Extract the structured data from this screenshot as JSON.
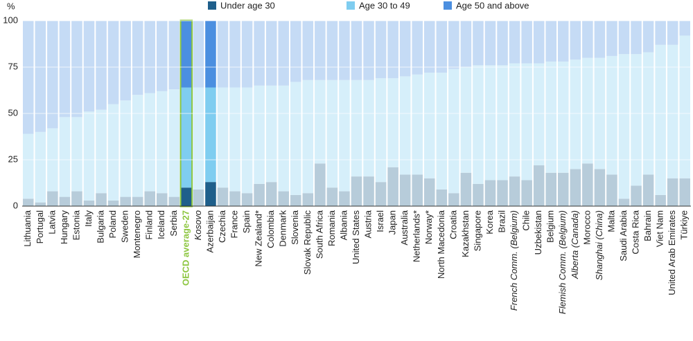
{
  "chart_data": {
    "type": "stacked-bar",
    "y_label": "%",
    "categories": [
      "Lithuania",
      "Portugal",
      "Latvia",
      "Hungary",
      "Estonia",
      "Italy",
      "Bulgaria",
      "Poland",
      "Sweden",
      "Montenegro",
      "Finland",
      "Iceland",
      "Serbia",
      "OECD average-27",
      "Kosovo",
      "Azerbaijan",
      "Czechia",
      "France",
      "Spain",
      "New Zealand*",
      "Colombia",
      "Denmark",
      "Slovenia",
      "Slovak Republic",
      "South Africa",
      "Romania",
      "Albania",
      "United States",
      "Austria",
      "Israel",
      "Japan",
      "Australia",
      "Netherlands*",
      "Norway*",
      "North Macedonia",
      "Croatia",
      "Kazakhstan",
      "Singapore",
      "Korea",
      "Brazil",
      "French Comm. (Belgium)",
      "Chile",
      "Uzbekistan",
      "Belgium",
      "Flemish Comm. (Belgium)",
      "Alberta (Canada)",
      "Morocco",
      "Shanghai (China)",
      "Malta",
      "Saudi Arabia",
      "Costa Rica",
      "Bahrain",
      "Viet Nam",
      "United Arab Emirates",
      "Türkiye"
    ],
    "series": [
      {
        "name": "Under age 30",
        "color": "#1f5f8b",
        "values": [
          4,
          2,
          8,
          5,
          8,
          3,
          7,
          3,
          5,
          5,
          8,
          7,
          5,
          10,
          9,
          13,
          10,
          8,
          7,
          12,
          13,
          8,
          6,
          7,
          23,
          10,
          8,
          16,
          16,
          13,
          21,
          17,
          17,
          15,
          9,
          7,
          18,
          12,
          14,
          14,
          16,
          14,
          22,
          18,
          18,
          20,
          23,
          20,
          17,
          4,
          11,
          17,
          6,
          15,
          15
        ]
      },
      {
        "name": "Age 30 to 49",
        "color": "#7fcdf0",
        "values": [
          35,
          38,
          34,
          43,
          40,
          48,
          45,
          52,
          52,
          55,
          53,
          55,
          58,
          54,
          55,
          51,
          54,
          56,
          57,
          53,
          52,
          57,
          61,
          61,
          45,
          58,
          60,
          52,
          52,
          56,
          48,
          53,
          54,
          57,
          63,
          67,
          57,
          64,
          62,
          62,
          61,
          63,
          55,
          60,
          60,
          59,
          57,
          60,
          64,
          78,
          71,
          66,
          81,
          72,
          77
        ]
      },
      {
        "name": "Age 50 and above",
        "color": "#4b8fe0",
        "values": [
          61,
          60,
          58,
          52,
          52,
          49,
          48,
          45,
          43,
          40,
          39,
          38,
          37,
          36,
          36,
          36,
          36,
          36,
          36,
          35,
          35,
          35,
          33,
          32,
          32,
          32,
          32,
          32,
          32,
          31,
          31,
          30,
          29,
          28,
          28,
          26,
          25,
          24,
          24,
          24,
          23,
          23,
          23,
          22,
          22,
          21,
          20,
          20,
          19,
          18,
          18,
          17,
          13,
          13,
          8
        ]
      }
    ],
    "ylim": [
      0,
      100
    ],
    "yticks": [
      0,
      25,
      50,
      75,
      100
    ],
    "grid": true,
    "highlight": [
      13,
      15
    ],
    "outline": 13,
    "italic": [
      14,
      40,
      44,
      45,
      47
    ],
    "outline_color": "#8cc63f"
  }
}
